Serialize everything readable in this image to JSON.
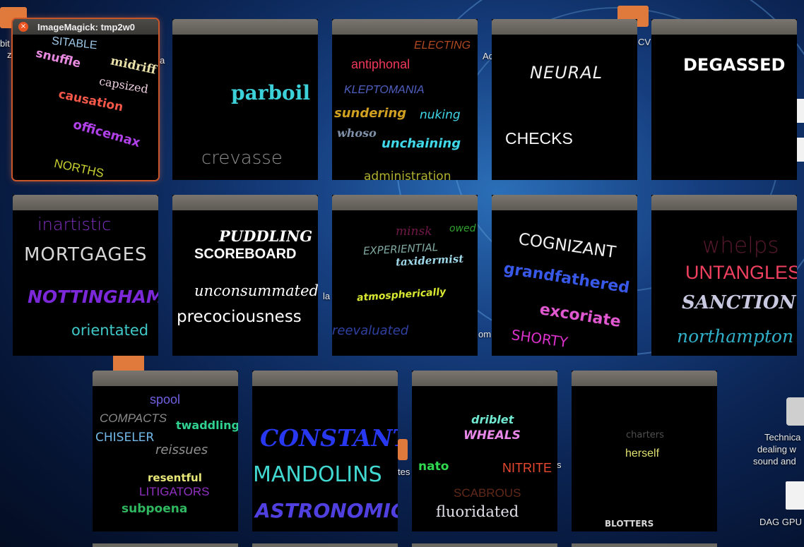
{
  "active_window": {
    "title": "ImageMagick: tmp2w0",
    "close_symbol": "×"
  },
  "desktop": {
    "label_technical": "Technica",
    "label_dealing": "dealing w",
    "label_sound": "sound and",
    "label_dag": "DAG GPU",
    "frag_bit": "bit",
    "frag_z": "z",
    "frag_a": "a",
    "frag_ac": "Ac",
    "frag_cv": "CV",
    "frag_la": "la",
    "frag_om": "om",
    "frag_tes": "tes",
    "frag_s": "s"
  },
  "windows": [
    {
      "id": 1,
      "words": [
        "SITABLE",
        "snuffle",
        "midriff",
        "capsized",
        "causation",
        "officemax",
        "NORTHS"
      ]
    },
    {
      "id": 2,
      "words": [
        "parboil",
        "crevasse"
      ]
    },
    {
      "id": 3,
      "words": [
        "ELECTING",
        "antiphonal",
        "KLEPTOMANIA",
        "sundering",
        "nuking",
        "whoso",
        "unchaining",
        "administration"
      ]
    },
    {
      "id": 4,
      "words": [
        "NEURAL",
        "CHECKS"
      ]
    },
    {
      "id": 5,
      "words": [
        "DEGASSED"
      ]
    },
    {
      "id": 6,
      "words": [
        "inartistic",
        "MORTGAGES",
        "NOTTINGHAM",
        "orientated"
      ]
    },
    {
      "id": 7,
      "words": [
        "PUDDLING",
        "SCOREBOARD",
        "unconsummated",
        "precociousness"
      ]
    },
    {
      "id": 8,
      "words": [
        "minsk",
        "owed",
        "EXPERIENTIAL",
        "taxidermist",
        "atmospherically",
        "reevaluated"
      ]
    },
    {
      "id": 9,
      "words": [
        "COGNIZANT",
        "grandfathered",
        "excoriate",
        "SHORTY"
      ]
    },
    {
      "id": 10,
      "words": [
        "whelps",
        "UNTANGLES",
        "SANCTION",
        "northampton"
      ]
    },
    {
      "id": 11,
      "words": [
        "spool",
        "COMPACTS",
        "twaddling",
        "CHISELER",
        "reissues",
        "resentful",
        "LITIGATORS",
        "subpoena"
      ]
    },
    {
      "id": 12,
      "words": [
        "CONSTANT",
        "MANDOLINS",
        "ASTRONOMIC"
      ]
    },
    {
      "id": 13,
      "words": [
        "driblet",
        "WHEALS",
        "nato",
        "NITRITE",
        "SCABROUS",
        "fluoridated"
      ]
    },
    {
      "id": 14,
      "words": [
        "charters",
        "herself",
        "BLOTTERS"
      ]
    }
  ]
}
